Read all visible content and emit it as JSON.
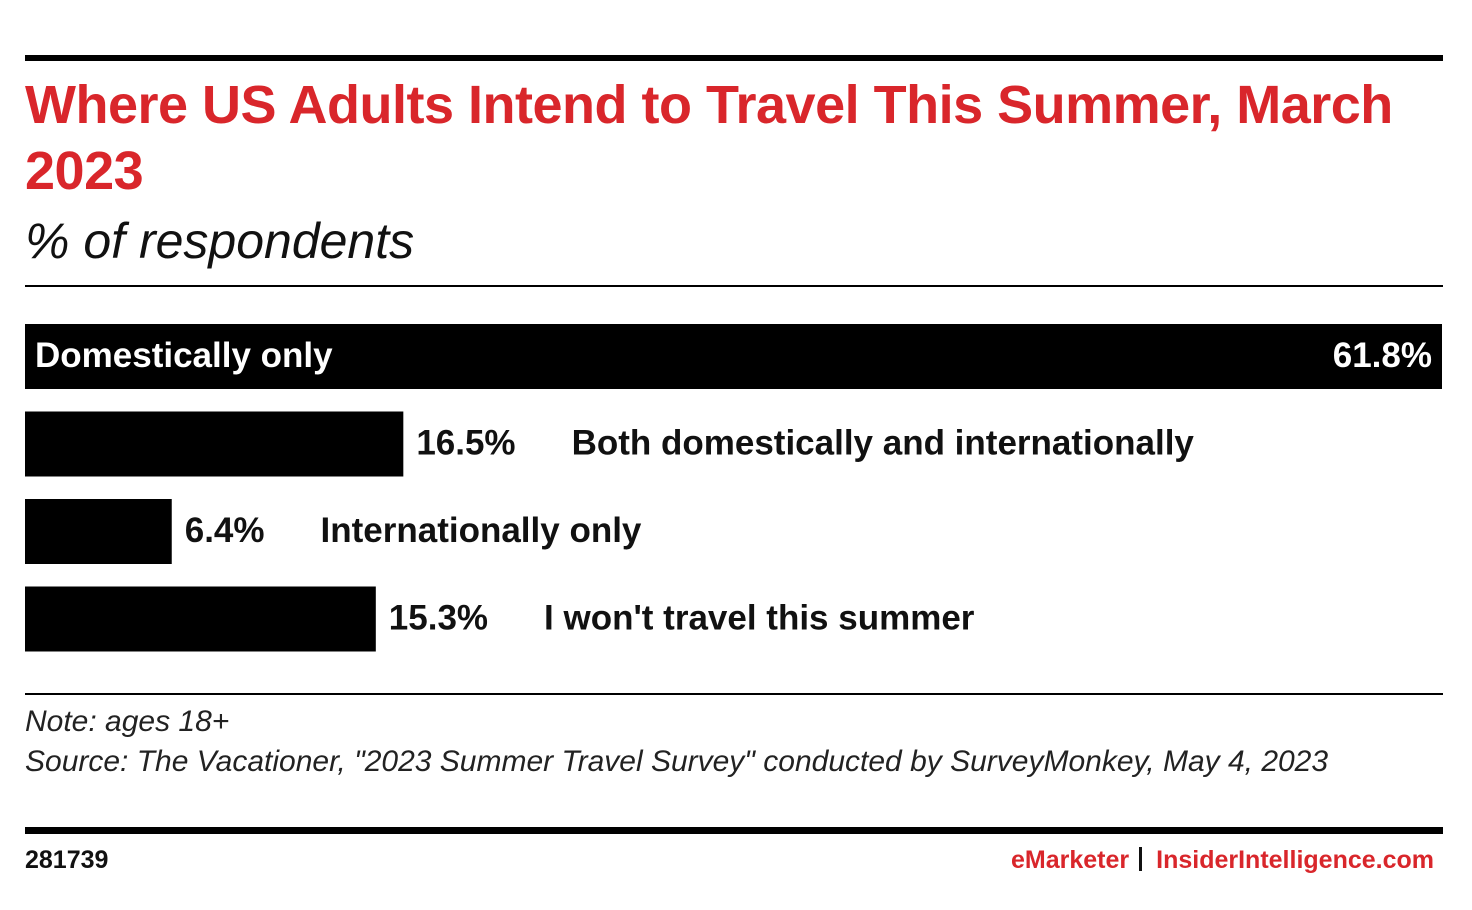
{
  "chart_data": {
    "type": "bar",
    "orientation": "horizontal",
    "title": "Where US Adults Intend to Travel This Summer, March 2023",
    "subtitle": "% of respondents",
    "categories": [
      "Domestically only",
      "Both domestically and internationally",
      "Internationally only",
      "I won't travel this summer"
    ],
    "values": [
      61.8,
      16.5,
      6.4,
      15.3
    ],
    "value_labels": [
      "61.8%",
      "16.5%",
      "6.4%",
      "15.3%"
    ],
    "color": "#000000",
    "note": "Note: ages 18+",
    "source": "Source: The Vacationer, \"2023 Summer Travel Survey\" conducted by SurveyMonkey, May 4, 2023",
    "chart_id": "281739",
    "publisher": "eMarketer",
    "website": "InsiderIntelligence.com"
  }
}
